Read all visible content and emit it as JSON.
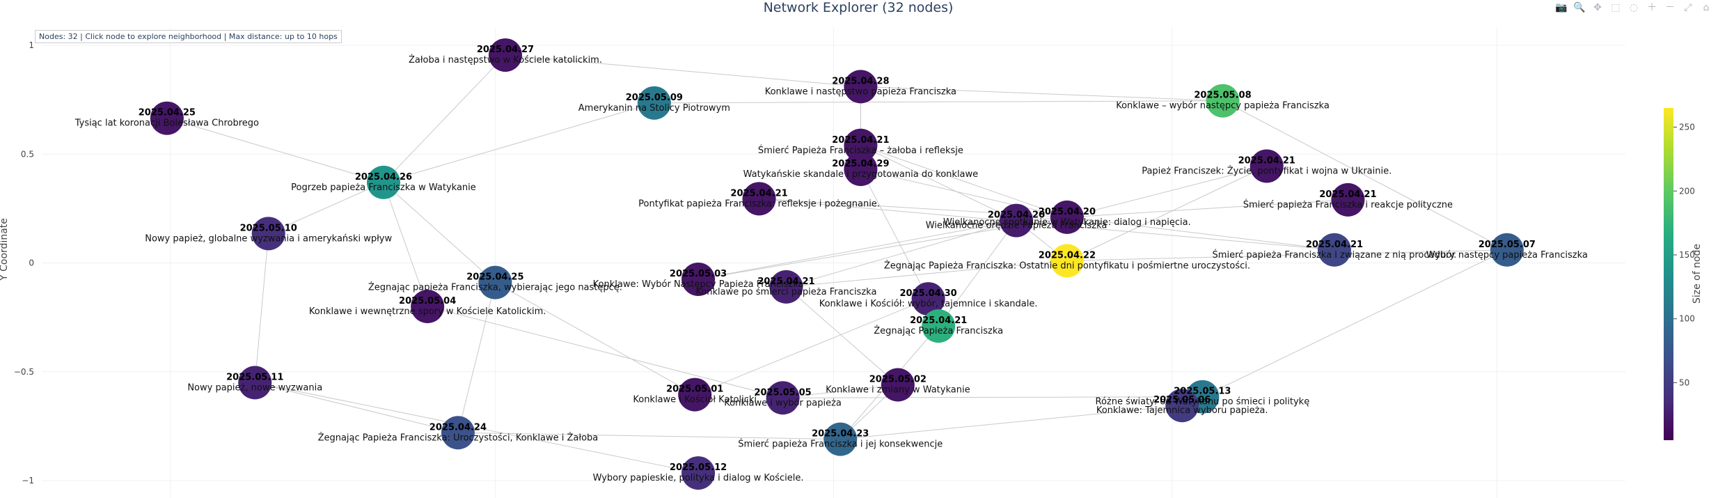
{
  "title": "Network Explorer (32 nodes)",
  "info_box": "Nodes: 32 | Click node to explore neighborhood | Max distance: up to 10 hops",
  "modebar": [
    {
      "icon": "camera-icon",
      "glyph": "📷"
    },
    {
      "icon": "zoom-icon",
      "glyph": "🔍"
    },
    {
      "icon": "pan-icon",
      "glyph": "✥"
    },
    {
      "icon": "box-select-icon",
      "glyph": "⬚"
    },
    {
      "icon": "lasso-icon",
      "glyph": "◌"
    },
    {
      "icon": "zoom-in-icon",
      "glyph": "＋"
    },
    {
      "icon": "zoom-out-icon",
      "glyph": "－"
    },
    {
      "icon": "autoscale-icon",
      "glyph": "⤢"
    },
    {
      "icon": "home-icon",
      "glyph": "⌂"
    }
  ],
  "chart_data": {
    "type": "scatter",
    "title": "Network Explorer (32 nodes)",
    "xlabel": "",
    "ylabel": "Y Coordinate",
    "xlim": [
      -1.17,
      1.17
    ],
    "ylim": [
      -1.08,
      1.08
    ],
    "y_ticks": [
      1,
      0.5,
      0,
      -0.5,
      -1
    ],
    "y_tick_labels": [
      "1",
      "0.5",
      "0",
      "−0.5",
      "−1"
    ],
    "x_grid": [
      -0.98,
      -0.5,
      0,
      0.5,
      0.98
    ],
    "grid": true,
    "colorbar": {
      "title": "Size of node",
      "colorscale": "viridis",
      "range": [
        5,
        265
      ],
      "ticks": [
        50,
        100,
        150,
        200,
        250
      ]
    },
    "nodes": [
      {
        "id": "n1",
        "date": "2025.04.25",
        "label": "Tysiąc lat koronacji Bolesława Chrobrego",
        "x": -0.985,
        "y": 0.665,
        "size": 20
      },
      {
        "id": "n2",
        "date": "2025.04.27",
        "label": "Żałoba i następstwo w Kościele katolickim.",
        "x": -0.485,
        "y": 0.955,
        "size": 20
      },
      {
        "id": "n3",
        "date": "2025.05.09",
        "label": "Amerykanin na Stolicy Piotrowym",
        "x": -0.265,
        "y": 0.735,
        "size": 110
      },
      {
        "id": "n4",
        "date": "2025.04.28",
        "label": "Konklawe i następstwo papieża Franciszka",
        "x": 0.04,
        "y": 0.81,
        "size": 20
      },
      {
        "id": "n5",
        "date": "2025.05.08",
        "label": "Konklawe – wybór następcy papieża Franciszka",
        "x": 0.575,
        "y": 0.745,
        "size": 190
      },
      {
        "id": "n6",
        "date": "2025.04.26",
        "label": "Pogrzeb papieża Franciszka w Watykanie",
        "x": -0.665,
        "y": 0.37,
        "size": 140
      },
      {
        "id": "n7",
        "date": "2025.05.10",
        "label": "Nowy papież, globalne wyzwania i amerykański wpływ",
        "x": -0.835,
        "y": 0.135,
        "size": 40
      },
      {
        "id": "n8",
        "date": "2025.04.21",
        "label": "Śmierć Papieża Franciszka – żałoba i refleksje",
        "x": 0.04,
        "y": 0.54,
        "size": 20
      },
      {
        "id": "n9",
        "date": "2025.04.29",
        "label": "Watykańskie skandale i przygotowania do konklawe",
        "x": 0.04,
        "y": 0.43,
        "size": 20
      },
      {
        "id": "n10",
        "date": "2025.04.21",
        "label": "Pontyfikat papieża Franciszka: refleksje i pożegnanie.",
        "x": -0.11,
        "y": 0.295,
        "size": 20
      },
      {
        "id": "n11",
        "date": "2025.04.21",
        "label": "Papież Franciszek: Życie, pontyfikat i wojna w Ukrainie.",
        "x": 0.64,
        "y": 0.445,
        "size": 20
      },
      {
        "id": "n12",
        "date": "2025.04.21",
        "label": "Śmierć papieża Franciszka i reakcje polityczne",
        "x": 0.76,
        "y": 0.29,
        "size": 20
      },
      {
        "id": "n13",
        "date": "2025.04.20",
        "label": "Wielkanocne spotkanie w Watykanie: dialog i napięcia.",
        "x": 0.345,
        "y": 0.21,
        "size": 20
      },
      {
        "id": "n14",
        "date": "2025.04.20",
        "label": "Wielkanocne orędzie Papieża Franciszka",
        "x": 0.27,
        "y": 0.195,
        "size": 25
      },
      {
        "id": "n15",
        "date": "2025.04.22",
        "label": "Żegnając Papieża Franciszka: Ostatnie dni pontyfikatu i pośmiertne uroczystości.",
        "x": 0.345,
        "y": 0.01,
        "size": 265
      },
      {
        "id": "n16",
        "date": "2025.04.21",
        "label": "Śmierć papieża Franciszka i związane z nią procedury.",
        "x": 0.74,
        "y": 0.06,
        "size": 60
      },
      {
        "id": "n17",
        "date": "2025.05.07",
        "label": "Wybór następcy papieża Franciszka",
        "x": 0.995,
        "y": 0.06,
        "size": 80
      },
      {
        "id": "n18",
        "date": "2025.04.25",
        "label": "Żegnając papieża Franciszka, wybierając jego następcę.",
        "x": -0.5,
        "y": -0.09,
        "size": 80
      },
      {
        "id": "n19",
        "date": "2025.05.03",
        "label": "Konklawe: Wybór Następcy Papieża Franciszka",
        "x": -0.2,
        "y": -0.075,
        "size": 20
      },
      {
        "id": "n20",
        "date": "2025.04.21",
        "label": "Konklawe po śmierci papieża Franciszka",
        "x": -0.07,
        "y": -0.11,
        "size": 30
      },
      {
        "id": "n21",
        "date": "2025.05.04",
        "label": "Konklawe i wewnętrzne spory w Kościele Katolickim.",
        "x": -0.6,
        "y": -0.2,
        "size": 20
      },
      {
        "id": "n22",
        "date": "2025.04.30",
        "label": "Konklawe i Kościół: wybór, tajemnice i skandale.",
        "x": 0.14,
        "y": -0.165,
        "size": 30
      },
      {
        "id": "n23",
        "date": "2025.04.21",
        "label": "Żegnając Papieża Franciszka",
        "x": 0.155,
        "y": -0.29,
        "size": 170
      },
      {
        "id": "n24",
        "date": "2025.05.11",
        "label": "Nowy papież, nowe wyzwania",
        "x": -0.855,
        "y": -0.55,
        "size": 30
      },
      {
        "id": "n25",
        "date": "2025.05.01",
        "label": "Konklawe i Kościół Katolicki",
        "x": -0.205,
        "y": -0.605,
        "size": 20
      },
      {
        "id": "n26",
        "date": "2025.05.05",
        "label": "Konklawe i wybór papieża",
        "x": -0.075,
        "y": -0.62,
        "size": 30
      },
      {
        "id": "n27",
        "date": "2025.05.02",
        "label": "Konklawe i zmiany w Watykanie",
        "x": 0.095,
        "y": -0.56,
        "size": 20
      },
      {
        "id": "n28",
        "date": "2025.05.13",
        "label": "Różne światy: od Watykanu po śmieci i politykę",
        "x": 0.545,
        "y": -0.615,
        "size": 110
      },
      {
        "id": "n29",
        "date": "2025.05.06",
        "label": "Konklawe: Tajemnica wyboru papieża.",
        "x": 0.515,
        "y": -0.655,
        "size": 50
      },
      {
        "id": "n30",
        "date": "2025.04.24",
        "label": "Żegnając Papieża Franciszka: Uroczystości, Konklawe i Żałoba",
        "x": -0.555,
        "y": -0.78,
        "size": 70
      },
      {
        "id": "n31",
        "date": "2025.04.23",
        "label": "Śmierć papieża Franciszka i jej konsekwencje",
        "x": 0.01,
        "y": -0.81,
        "size": 90
      },
      {
        "id": "n32",
        "date": "2025.05.12",
        "label": "Wybory papieskie, polityka i dialog w Kościele.",
        "x": -0.2,
        "y": -0.965,
        "size": 40
      }
    ],
    "edges": [
      [
        "n1",
        "n6"
      ],
      [
        "n2",
        "n4"
      ],
      [
        "n2",
        "n6"
      ],
      [
        "n3",
        "n6"
      ],
      [
        "n3",
        "n5"
      ],
      [
        "n4",
        "n8"
      ],
      [
        "n4",
        "n5"
      ],
      [
        "n6",
        "n7"
      ],
      [
        "n6",
        "n18"
      ],
      [
        "n6",
        "n21"
      ],
      [
        "n7",
        "n24"
      ],
      [
        "n8",
        "n14"
      ],
      [
        "n8",
        "n13"
      ],
      [
        "n9",
        "n13"
      ],
      [
        "n9",
        "n22"
      ],
      [
        "n10",
        "n13"
      ],
      [
        "n10",
        "n16"
      ],
      [
        "n5",
        "n17"
      ],
      [
        "n11",
        "n13"
      ],
      [
        "n11",
        "n15"
      ],
      [
        "n12",
        "n14"
      ],
      [
        "n13",
        "n16"
      ],
      [
        "n14",
        "n15"
      ],
      [
        "n14",
        "n19"
      ],
      [
        "n14",
        "n20"
      ],
      [
        "n15",
        "n20"
      ],
      [
        "n15",
        "n17"
      ],
      [
        "n13",
        "n19"
      ],
      [
        "n17",
        "n28"
      ],
      [
        "n18",
        "n30"
      ],
      [
        "n18",
        "n25"
      ],
      [
        "n20",
        "n27"
      ],
      [
        "n21",
        "n26"
      ],
      [
        "n22",
        "n25"
      ],
      [
        "n23",
        "n31"
      ],
      [
        "n22",
        "n23"
      ],
      [
        "n24",
        "n30"
      ],
      [
        "n24",
        "n32"
      ],
      [
        "n26",
        "n27"
      ],
      [
        "n26",
        "n28"
      ],
      [
        "n30",
        "n31"
      ],
      [
        "n31",
        "n29"
      ],
      [
        "n27",
        "n31"
      ],
      [
        "n14",
        "n23"
      ],
      [
        "n9",
        "n4"
      ]
    ]
  }
}
